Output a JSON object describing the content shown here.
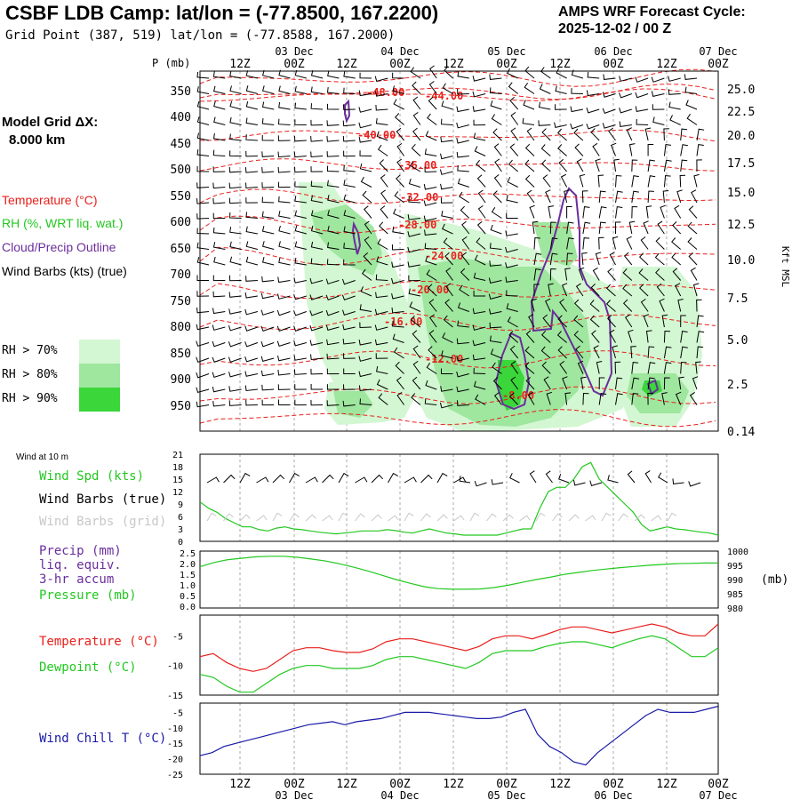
{
  "header": {
    "title": "CSBF LDB Camp:  lat/lon = (-77.8500, 167.2200)",
    "subtitle": "Grid Point (387, 519) lat/lon = (-77.8588, 167.2000)",
    "cycle_line1": "AMPS WRF Forecast Cycle:",
    "cycle_line2": "2025-12-02 / 00  Z"
  },
  "left_panel": {
    "model_grid_label": "Model Grid ΔX:",
    "model_grid_value": "8.000 km",
    "pressure_axis_label": "P (mb)",
    "legend_temperature": "Temperature (°C)",
    "legend_rh": "RH (%, WRT liq. wat.)",
    "legend_cloud": "Cloud/Precip Outline",
    "legend_wind": "Wind Barbs (kts) (true)",
    "rh_thresholds": [
      "RH > 70%",
      "RH > 80%",
      "RH > 90%"
    ],
    "wind10m_title": "Wind at 10 m",
    "wind_spd": "Wind Spd (kts)",
    "wind_barbs_true": "Wind Barbs (true)",
    "wind_barbs_grid": "Wind Barbs (grid)",
    "precip_1": "Precip (mm)",
    "precip_2": "liq. equiv.",
    "precip_3": "3-hr accum",
    "pressure": "Pressure (mb)",
    "temperature": "Temperature (°C)",
    "dewpoint": "Dewpoint (°C)",
    "wind_chill": "Wind Chill T (°C)"
  },
  "colors": {
    "temperature": "#e8201c",
    "dewpoint": "#22c820",
    "wind_speed": "#22c820",
    "pressure": "#22c820",
    "wind_chill": "#1a1aa8",
    "cloud_outline": "#6a2e9c",
    "rh70": "#d2f7d2",
    "rh80": "#9fe69f",
    "rh90": "#3ad63a",
    "grid_barbs": "#c8c8c8"
  },
  "chart_data": [
    {
      "type": "heatmap",
      "name": "cross-section",
      "x_ticks_hour": [
        "12Z",
        "00Z",
        "12Z",
        "00Z",
        "12Z",
        "00Z",
        "12Z",
        "00Z",
        "12Z",
        "00Z"
      ],
      "x_ticks_date": [
        "03 Dec",
        "04 Dec",
        "05 Dec",
        "06 Dec",
        "07 Dec"
      ],
      "ylabel": "P (mb)",
      "pressure_levels": [
        350,
        400,
        450,
        500,
        550,
        600,
        650,
        700,
        750,
        800,
        850,
        900,
        950
      ],
      "right_axis_label": "Kft MSL",
      "right_axis_ticks": [
        "25.0",
        "22.5",
        "20.0",
        "17.5",
        "15.0",
        "12.5",
        "10.0",
        "7.5",
        "5.0",
        "2.5",
        "0.14"
      ],
      "temperature_contour_labels": [
        "-48.00",
        "-44.00",
        "-40.00",
        "-36.00",
        "-32.00",
        "-28.00",
        "-24.00",
        "-20.00",
        "-16.00",
        "-12.00",
        "-8.00"
      ]
    },
    {
      "type": "line",
      "name": "wind-speed",
      "ylim": [
        0,
        21
      ],
      "yticks": [
        "21",
        "18",
        "15",
        "12",
        "9",
        "6",
        "3",
        "0"
      ],
      "values": [
        9.5,
        8,
        7,
        5.5,
        4.5,
        3.5,
        3.5,
        2.8,
        2.5,
        3.2,
        3.5,
        3,
        2.8,
        2.5,
        2.2,
        2,
        1.8,
        2,
        2.2,
        2.5,
        2.5,
        2.5,
        2.8,
        2.6,
        2.2,
        2,
        2.5,
        3,
        2.5,
        2,
        1.8,
        1.5,
        1.5,
        1.5,
        1.5,
        1.5,
        2,
        2.5,
        3,
        3,
        8,
        12,
        13,
        13,
        15,
        18,
        19,
        15,
        13,
        11,
        9,
        7,
        4,
        2.5,
        3,
        3.5,
        3,
        2.8,
        2.5,
        2.2,
        2,
        1.5
      ]
    },
    {
      "type": "line",
      "name": "pressure",
      "ylim": [
        980,
        1000
      ],
      "left_ticks": [
        "2.5",
        "2.0",
        "1.5",
        "1.0",
        "0.5",
        "0.0"
      ],
      "right_ticks": [
        "1000",
        "995",
        "990",
        "985",
        "980"
      ],
      "right_label": "(mb)",
      "values": [
        994.5,
        996,
        997,
        997.5,
        998,
        998.2,
        998.2,
        997.8,
        997.2,
        996.5,
        995.5,
        994.3,
        993,
        991.5,
        990,
        988.7,
        987.5,
        986.8,
        986.6,
        986.6,
        986.7,
        987.2,
        988,
        989,
        990,
        990.8,
        991.8,
        992.5,
        993.2,
        993.7,
        994.2,
        994.6,
        995,
        995.3,
        995.6,
        995.7,
        995.8,
        995.8
      ]
    },
    {
      "type": "line",
      "name": "temperature-dewpoint",
      "ylim": [
        -15,
        -1.5
      ],
      "yticks": [
        "-5",
        "-10",
        "-15"
      ],
      "series": [
        {
          "name": "Temperature",
          "values": [
            -8.5,
            -8,
            -9.5,
            -10.5,
            -11,
            -10.5,
            -9,
            -7.5,
            -7,
            -7,
            -7.5,
            -7.8,
            -7.8,
            -7.2,
            -6,
            -5.5,
            -5.5,
            -6,
            -6.5,
            -7,
            -7.5,
            -6.8,
            -5.5,
            -5,
            -5,
            -5.5,
            -4.8,
            -4,
            -3.5,
            -3.5,
            -4,
            -4.5,
            -4,
            -3.5,
            -3,
            -3.5,
            -4.5,
            -5,
            -5,
            -3
          ]
        },
        {
          "name": "Dewpoint",
          "values": [
            -11.5,
            -12,
            -13.5,
            -14.5,
            -14.5,
            -13,
            -11.5,
            -10.5,
            -10,
            -10,
            -10.5,
            -10.5,
            -10.5,
            -10,
            -9,
            -8.5,
            -8.5,
            -9,
            -9.5,
            -10,
            -10.5,
            -9.5,
            -8,
            -7.5,
            -7.5,
            -7.5,
            -6.8,
            -6.3,
            -6,
            -6,
            -6.5,
            -7,
            -6.2,
            -5.5,
            -5,
            -5.5,
            -7,
            -8.5,
            -8.5,
            -7
          ]
        }
      ]
    },
    {
      "type": "line",
      "name": "wind-chill",
      "ylim": [
        -25,
        -2
      ],
      "yticks": [
        "-5",
        "-10",
        "-15",
        "-20",
        "-25"
      ],
      "values": [
        -19,
        -18,
        -16,
        -15,
        -14,
        -13,
        -12,
        -11,
        -10,
        -9,
        -8.5,
        -8,
        -9,
        -8,
        -7.5,
        -7,
        -6,
        -5,
        -5,
        -5,
        -5.5,
        -6,
        -6.5,
        -7,
        -7,
        -6.5,
        -5,
        -4,
        -12,
        -16,
        -18,
        -21,
        -22,
        -18,
        -15,
        -12,
        -9,
        -6,
        -4,
        -5,
        -5,
        -5,
        -4,
        -3
      ]
    }
  ]
}
